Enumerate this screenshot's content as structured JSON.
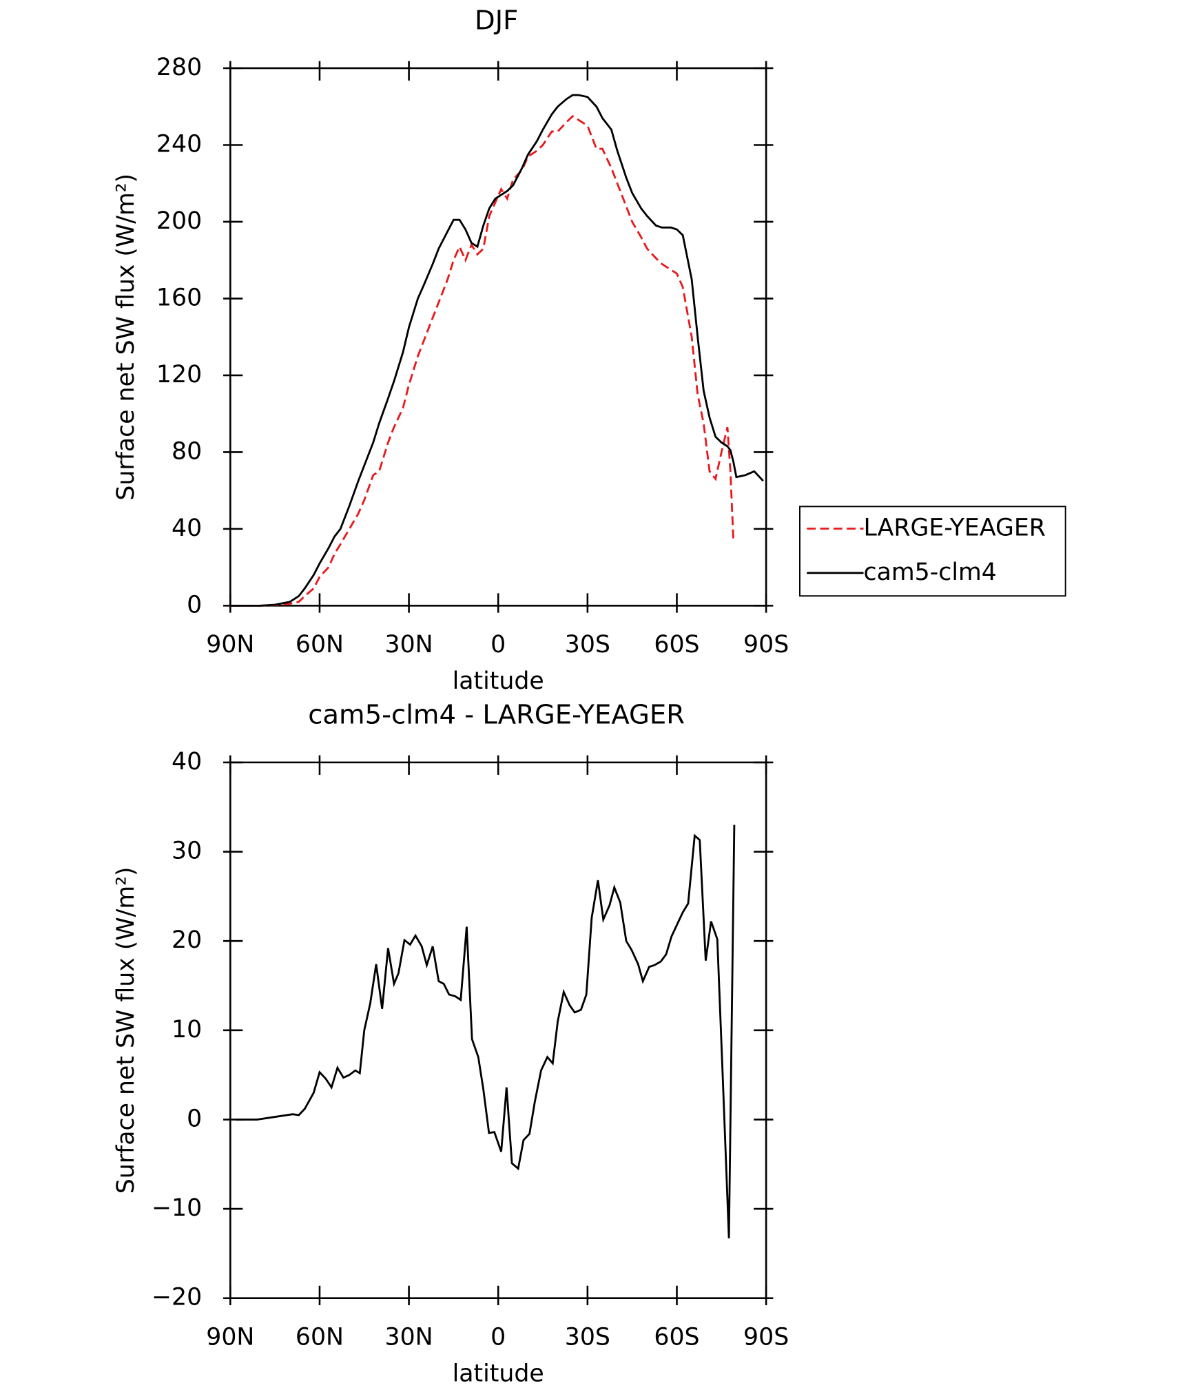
{
  "chart_data": [
    {
      "type": "line",
      "title": "DJF",
      "xlabel": "latitude",
      "ylabel": "Surface net SW flux (W/m²)",
      "xlim": [
        90,
        -90
      ],
      "ylim": [
        0,
        280
      ],
      "xticks": [
        {
          "value": 90,
          "label": "90N"
        },
        {
          "value": 60,
          "label": "60N"
        },
        {
          "value": 30,
          "label": "30N"
        },
        0,
        {
          "value": -30,
          "label": "30S"
        },
        {
          "value": -60,
          "label": "60S"
        },
        {
          "value": -90,
          "label": "90S"
        }
      ],
      "yticks": [
        0,
        40,
        80,
        120,
        160,
        200,
        240,
        280
      ],
      "legend": "right",
      "x": [
        90,
        85,
        80,
        75,
        70,
        67,
        65,
        62,
        60,
        57,
        55,
        53,
        50,
        47,
        45,
        42,
        40,
        37,
        35,
        32,
        30,
        27,
        25,
        22,
        20,
        17,
        15,
        13,
        11,
        9,
        7,
        5,
        3,
        1,
        -1,
        -3,
        -5,
        -8,
        -10,
        -13,
        -15,
        -18,
        -20,
        -23,
        -25,
        -27,
        -30,
        -33,
        -35,
        -38,
        -40,
        -43,
        -45,
        -48,
        -50,
        -53,
        -55,
        -58,
        -60,
        -62,
        -65,
        -67,
        -69,
        -71,
        -73,
        -75,
        -77,
        -78,
        -79,
        -80,
        -83,
        -86,
        -89
      ],
      "series": [
        {
          "name": "LARGE-YEAGER",
          "color": "#e8191c",
          "linestyle": "dashed",
          "values": [
            0,
            0,
            0,
            0.3,
            1,
            2,
            5,
            9,
            15,
            20,
            27,
            32,
            40,
            48,
            55,
            68,
            70,
            85,
            93,
            103,
            115,
            130,
            138,
            150,
            158,
            170,
            180,
            187,
            180,
            188,
            183,
            186,
            203,
            210,
            217,
            212,
            222,
            227,
            234,
            237,
            240,
            247,
            247,
            252,
            255,
            253,
            250,
            238,
            238,
            228,
            220,
            208,
            200,
            192,
            186,
            181,
            178,
            175,
            173,
            166,
            140,
            110,
            95,
            70,
            66,
            80,
            93,
            70,
            34,
            null,
            null,
            null,
            null
          ]
        },
        {
          "name": "cam5-clm4",
          "color": "#000000",
          "linestyle": "solid",
          "values": [
            0,
            0,
            0,
            0.5,
            2,
            5,
            9,
            16,
            22,
            30,
            36,
            40,
            52,
            65,
            73,
            85,
            95,
            108,
            117,
            132,
            145,
            160,
            167,
            178,
            186,
            195,
            201,
            201,
            196,
            189,
            187,
            198,
            207,
            212,
            214,
            216,
            219,
            228,
            235,
            242,
            248,
            256,
            260,
            264,
            266,
            266,
            265,
            260,
            254,
            248,
            237,
            223,
            215,
            207,
            203,
            198,
            197,
            197,
            196,
            193,
            170,
            140,
            112,
            98,
            88,
            85,
            83,
            81,
            75,
            67,
            68,
            70,
            65
          ]
        }
      ]
    },
    {
      "type": "line",
      "title": "cam5-clm4 - LARGE-YEAGER",
      "xlabel": "latitude",
      "ylabel": "Surface net SW flux (W/m²)",
      "xlim": [
        90,
        -90
      ],
      "ylim": [
        -20,
        40
      ],
      "xticks": [
        {
          "value": 90,
          "label": "90N"
        },
        {
          "value": 60,
          "label": "60N"
        },
        {
          "value": 30,
          "label": "30N"
        },
        0,
        {
          "value": -30,
          "label": "30S"
        },
        {
          "value": -60,
          "label": "60S"
        },
        {
          "value": -90,
          "label": "90S"
        }
      ],
      "yticks": [
        {
          "value": -20,
          "label": "−20"
        },
        {
          "value": -10,
          "label": "−10"
        },
        0,
        10,
        20,
        30,
        40
      ],
      "x": [
        88,
        81,
        75,
        69,
        67,
        65,
        62,
        60,
        58,
        56,
        54,
        52,
        50,
        48,
        46.5,
        45,
        43,
        41,
        39,
        37,
        35,
        33.5,
        31.5,
        29.6,
        27.8,
        25.7,
        24,
        22,
        20,
        18.3,
        16.5,
        14.4,
        12.6,
        10.6,
        8.8,
        6.7,
        5,
        3.1,
        1.3,
        -1,
        -2.8,
        -4.6,
        -6.7,
        -8.5,
        -10.5,
        -12.3,
        -14.4,
        -16.5,
        -18.3,
        -20,
        -22,
        -24,
        -25.7,
        -27.8,
        -29.6,
        -31.4,
        -33.5,
        -35.3,
        -37.4,
        -39,
        -41,
        -43,
        -44.8,
        -47,
        -48.6,
        -50.7,
        -52.5,
        -54.6,
        -56.4,
        -58.2,
        -60.3,
        -62,
        -63.8,
        -66,
        -67.7,
        -69.7,
        -71.5,
        -73.6,
        -75.4,
        -77.5,
        -79.3
      ],
      "series": [
        {
          "color": "#000000",
          "linestyle": "solid",
          "values": [
            0,
            0,
            0.3,
            0.6,
            0.5,
            1.2,
            3,
            5.3,
            4.6,
            3.6,
            5.8,
            4.7,
            5,
            5.5,
            5.2,
            10,
            13,
            17.4,
            12.4,
            19.2,
            15.2,
            16.4,
            20.1,
            19.6,
            20.6,
            19.4,
            17.3,
            19.4,
            15.5,
            15.2,
            14,
            13.8,
            13.4,
            21.6,
            9,
            7,
            3.4,
            -1.5,
            -1.4,
            -3.6,
            3.6,
            -4.9,
            -5.5,
            -2.3,
            -1.6,
            2,
            5.5,
            7,
            6.3,
            11,
            14.3,
            12.8,
            12,
            12.3,
            14,
            22.6,
            26.8,
            22.4,
            24,
            26,
            24.3,
            20,
            19,
            17.4,
            15.5,
            17.1,
            17.3,
            17.7,
            18.5,
            20.5,
            22,
            23.2,
            24.2,
            31.8,
            31.3,
            17.8,
            22.2,
            20.2,
            5,
            -13.3,
            33
          ]
        }
      ]
    }
  ]
}
